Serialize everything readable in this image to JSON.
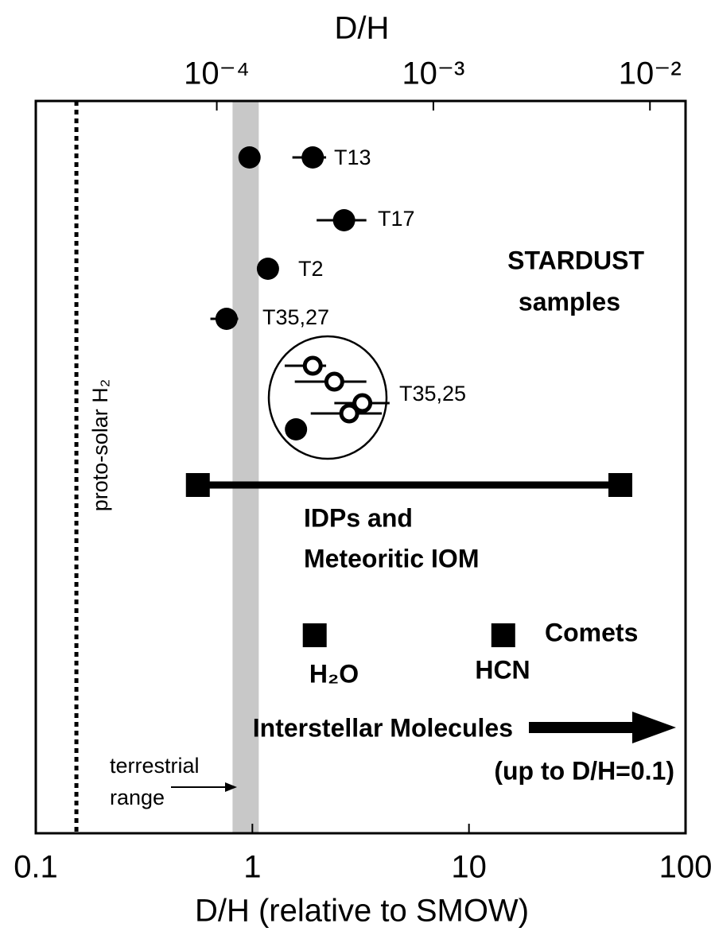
{
  "chart_data": {
    "type": "scatter",
    "x2label": "D/H",
    "xlabel": "D/H (relative to SMOW)",
    "xscale": "log",
    "xlim": [
      0.1,
      100
    ],
    "xticks": [
      0.1,
      1,
      10,
      100
    ],
    "x2lim": [
      1.46e-05,
      0.0146
    ],
    "x2ticks": [
      {
        "value": 0.0001,
        "label": "10⁻⁴"
      },
      {
        "value": 0.001,
        "label": "10⁻³"
      },
      {
        "value": 0.01,
        "label": "10⁻²"
      }
    ],
    "color": "#000000",
    "series": [
      {
        "label": "T13",
        "x": [
          0.97,
          1.9
        ],
        "x_low": [
          null,
          1.53
        ],
        "x_high": [
          null,
          2.19
        ],
        "filled": [
          true,
          true
        ]
      },
      {
        "label": "T17",
        "x": [
          2.65
        ],
        "x_low": [
          1.98
        ],
        "x_high": [
          3.36
        ],
        "filled": [
          true
        ]
      },
      {
        "label": "T2",
        "x": [
          1.18
        ],
        "x_low": [
          null
        ],
        "x_high": [
          null
        ],
        "filled": [
          true
        ]
      },
      {
        "label": "T35,27",
        "x": [
          0.76
        ],
        "x_low": [
          0.64
        ],
        "x_high": [
          0.86
        ],
        "filled": [
          true
        ]
      },
      {
        "label": "T35,25",
        "x": [
          1.9,
          2.39,
          3.22,
          2.8,
          1.59
        ],
        "x_low": [
          1.41,
          1.57,
          2.39,
          1.86,
          null
        ],
        "x_high": [
          2.19,
          3.36,
          4.3,
          3.96,
          null
        ],
        "filled": [
          false,
          false,
          false,
          false,
          true
        ]
      }
    ],
    "stardust": [
      "STARDUST",
      "samples"
    ],
    "idp": {
      "label": [
        "IDPs and",
        "Meteoritic IOM"
      ],
      "x": [
        0.56,
        50
      ]
    },
    "comets": {
      "label": "Comets",
      "categories": [
        "H₂O",
        "HCN"
      ],
      "x": [
        1.94,
        14.4
      ]
    },
    "interstellar": {
      "label": "Interstellar Molecules",
      "note": "(up to D/H=0.1)"
    },
    "terrestrial": {
      "label": [
        "terrestrial",
        "range"
      ],
      "x": [
        0.81,
        1.07
      ],
      "color": "#c8c8c8"
    },
    "protosolar": {
      "label": "proto-solar H₂",
      "x": 0.154
    }
  }
}
